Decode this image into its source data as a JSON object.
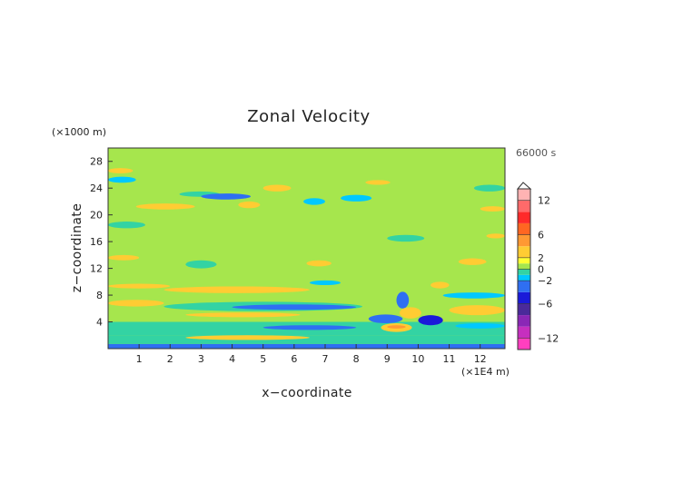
{
  "chart_data": {
    "type": "heatmap",
    "title": "Zonal Velocity",
    "xlabel": "x−coordinate",
    "ylabel": "z−coordinate",
    "x_unit": "(×1E4 m)",
    "y_unit": "(×1000 m)",
    "time_label": "66000 s",
    "xlim": [
      0,
      12.8
    ],
    "ylim": [
      0,
      30
    ],
    "x_ticks": [
      "1",
      "2",
      "3",
      "4",
      "5",
      "6",
      "7",
      "8",
      "9",
      "10",
      "11",
      "12"
    ],
    "y_ticks": [
      "4",
      "8",
      "12",
      "16",
      "20",
      "24",
      "28"
    ],
    "background_level": 0,
    "features": [
      {
        "x0": 0.0,
        "x1": 12.8,
        "z0": 0.0,
        "z1": 0.7,
        "value": -4
      },
      {
        "x0": 0.0,
        "x1": 12.8,
        "z0": 0.7,
        "z1": 2.0,
        "value": -1
      },
      {
        "x0": 0.0,
        "x1": 12.8,
        "z0": 2.0,
        "z1": 4.0,
        "value": -1
      },
      {
        "x0": 2.5,
        "x1": 6.5,
        "z0": 1.3,
        "z1": 2.0,
        "value": 2
      },
      {
        "x0": 0.0,
        "x1": 1.8,
        "z0": 6.3,
        "z1": 7.3,
        "value": 2
      },
      {
        "x0": 0.0,
        "x1": 2.0,
        "z0": 9.0,
        "z1": 9.7,
        "value": 2
      },
      {
        "x0": 1.8,
        "x1": 6.5,
        "z0": 8.3,
        "z1": 9.3,
        "value": 2
      },
      {
        "x0": 1.8,
        "x1": 8.2,
        "z0": 5.6,
        "z1": 7.0,
        "value": -1
      },
      {
        "x0": 4.0,
        "x1": 8.0,
        "z0": 5.8,
        "z1": 6.6,
        "value": -3
      },
      {
        "x0": 2.5,
        "x1": 6.2,
        "z0": 4.7,
        "z1": 5.4,
        "value": 2
      },
      {
        "x0": 5.0,
        "x1": 8.0,
        "z0": 2.8,
        "z1": 3.5,
        "value": -3
      },
      {
        "x0": 8.4,
        "x1": 9.5,
        "z0": 3.8,
        "z1": 5.1,
        "value": -3
      },
      {
        "x0": 8.8,
        "x1": 9.8,
        "z0": 2.5,
        "z1": 3.8,
        "value": 3
      },
      {
        "x0": 9.0,
        "x1": 9.6,
        "z0": 3.0,
        "z1": 3.5,
        "value": 5
      },
      {
        "x0": 9.3,
        "x1": 9.7,
        "z0": 6.0,
        "z1": 8.5,
        "value": -3
      },
      {
        "x0": 9.4,
        "x1": 10.1,
        "z0": 4.5,
        "z1": 6.2,
        "value": 3
      },
      {
        "x0": 10.0,
        "x1": 10.8,
        "z0": 3.5,
        "z1": 5.0,
        "value": -5
      },
      {
        "x0": 10.4,
        "x1": 11.0,
        "z0": 9.0,
        "z1": 10.0,
        "value": 2
      },
      {
        "x0": 10.8,
        "x1": 12.8,
        "z0": 7.5,
        "z1": 8.4,
        "value": -2
      },
      {
        "x0": 11.0,
        "x1": 12.8,
        "z0": 5.0,
        "z1": 6.5,
        "value": 2
      },
      {
        "x0": 11.2,
        "x1": 12.8,
        "z0": 3.0,
        "z1": 3.8,
        "value": -2
      },
      {
        "x0": 0.0,
        "x1": 1.0,
        "z0": 13.2,
        "z1": 14.0,
        "value": 2
      },
      {
        "x0": 6.4,
        "x1": 7.2,
        "z0": 12.3,
        "z1": 13.2,
        "value": 2
      },
      {
        "x0": 6.5,
        "x1": 7.5,
        "z0": 9.5,
        "z1": 10.2,
        "value": -2
      },
      {
        "x0": 0.0,
        "x1": 1.2,
        "z0": 18.0,
        "z1": 19.0,
        "value": -1
      },
      {
        "x0": 0.9,
        "x1": 2.8,
        "z0": 20.8,
        "z1": 21.7,
        "value": 2
      },
      {
        "x0": 2.3,
        "x1": 3.6,
        "z0": 22.7,
        "z1": 23.5,
        "value": -1
      },
      {
        "x0": 3.0,
        "x1": 4.6,
        "z0": 22.3,
        "z1": 23.2,
        "value": -3
      },
      {
        "x0": 4.2,
        "x1": 4.9,
        "z0": 21.0,
        "z1": 22.0,
        "value": 2
      },
      {
        "x0": 5.0,
        "x1": 5.9,
        "z0": 23.5,
        "z1": 24.5,
        "value": 2
      },
      {
        "x0": 6.3,
        "x1": 7.0,
        "z0": 21.5,
        "z1": 22.5,
        "value": -2
      },
      {
        "x0": 7.5,
        "x1": 8.5,
        "z0": 22.0,
        "z1": 23.0,
        "value": -2
      },
      {
        "x0": 8.3,
        "x1": 9.1,
        "z0": 24.5,
        "z1": 25.2,
        "value": 2
      },
      {
        "x0": 0.0,
        "x1": 0.9,
        "z0": 24.8,
        "z1": 25.7,
        "value": -2
      },
      {
        "x0": 0.0,
        "x1": 0.8,
        "z0": 26.2,
        "z1": 27.0,
        "value": 2
      },
      {
        "x0": 12.0,
        "x1": 12.8,
        "z0": 20.5,
        "z1": 21.3,
        "value": 2
      },
      {
        "x0": 11.8,
        "x1": 12.8,
        "z0": 23.5,
        "z1": 24.5,
        "value": -1
      },
      {
        "x0": 12.2,
        "x1": 12.8,
        "z0": 16.5,
        "z1": 17.2,
        "value": 2
      },
      {
        "x0": 9.0,
        "x1": 10.2,
        "z0": 16.0,
        "z1": 17.0,
        "value": -1
      },
      {
        "x0": 11.3,
        "x1": 12.2,
        "z0": 12.5,
        "z1": 13.5,
        "value": 2
      },
      {
        "x0": 2.5,
        "x1": 3.5,
        "z0": 12.0,
        "z1": 13.2,
        "value": -1
      }
    ],
    "colorbar": {
      "ticks": [
        "12",
        "6",
        "2",
        "0",
        "−2",
        "−6",
        "−12"
      ],
      "levels": [
        -14,
        -12,
        -10,
        -8,
        -6,
        -4,
        -2,
        -1,
        0,
        1,
        2,
        4,
        6,
        8,
        10,
        12,
        14
      ],
      "colors": [
        "#ff3fbf",
        "#c62fbf",
        "#8a27b6",
        "#4a2a9a",
        "#1a1ad9",
        "#2f6ff2",
        "#00c8ff",
        "#33d3a3",
        "#a6e64d",
        "#ffff33",
        "#ffcc33",
        "#ff9933",
        "#ff6622",
        "#ff2a2a",
        "#ff6a6a",
        "#ffb3b3"
      ]
    }
  }
}
